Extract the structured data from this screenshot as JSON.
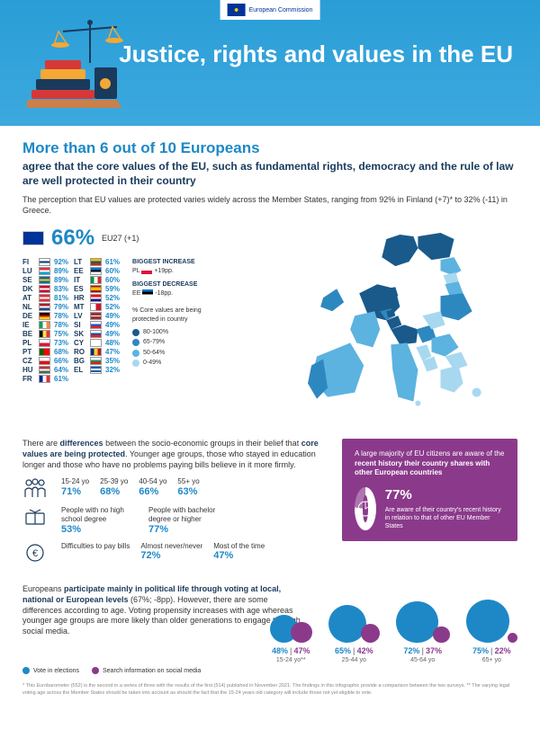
{
  "ec_label": "European\nCommission",
  "title": "Justice, rights and values in the EU",
  "headline": "More than 6 out of 10 Europeans",
  "subhead": "agree that the core values of the EU, such as fundamental rights, democracy and the rule of law are well protected in their country",
  "intro": "The perception that EU values are protected varies widely across the Member States, ranging from 92% in Finland (+7)* to 32% (-11) in Greece.",
  "big_pct": "66%",
  "big_label": "EU27 (+1)",
  "countries_a": [
    {
      "cc": "FI",
      "flag": "linear-gradient(#fff 35%,#003580 35% 65%,#fff 65%)",
      "pct": "92%"
    },
    {
      "cc": "LU",
      "flag": "linear-gradient(#ed2939 33%,#fff 33% 66%,#00a1de 66%)",
      "pct": "89%"
    },
    {
      "cc": "SE",
      "flag": "linear-gradient(#006aa7 35%,#fecc00 35% 65%,#006aa7 65%)",
      "pct": "89%"
    },
    {
      "cc": "DK",
      "flag": "linear-gradient(#c60c30 35%,#fff 35% 65%,#c60c30 65%)",
      "pct": "83%"
    },
    {
      "cc": "AT",
      "flag": "linear-gradient(#ed2939 33%,#fff 33% 66%,#ed2939 66%)",
      "pct": "81%"
    },
    {
      "cc": "NL",
      "flag": "linear-gradient(#ae1c28 33%,#fff 33% 66%,#21468b 66%)",
      "pct": "79%"
    },
    {
      "cc": "DE",
      "flag": "linear-gradient(#000 33%,#dd0000 33% 66%,#ffce00 66%)",
      "pct": "78%"
    },
    {
      "cc": "IE",
      "flag": "linear-gradient(90deg,#169b62 33%,#fff 33% 66%,#ff883e 66%)",
      "pct": "78%"
    },
    {
      "cc": "BE",
      "flag": "linear-gradient(90deg,#000 33%,#fae042 33% 66%,#ed2939 66%)",
      "pct": "75%"
    },
    {
      "cc": "PL",
      "flag": "linear-gradient(#fff 50%,#dc143c 50%)",
      "pct": "73%"
    },
    {
      "cc": "PT",
      "flag": "linear-gradient(90deg,#006600 40%,#ff0000 40%)",
      "pct": "68%"
    },
    {
      "cc": "CZ",
      "flag": "linear-gradient(#fff 50%,#d7141a 50%)",
      "pct": "66%"
    },
    {
      "cc": "HU",
      "flag": "linear-gradient(#cd2a3e 33%,#fff 33% 66%,#436f4d 66%)",
      "pct": "64%"
    },
    {
      "cc": "FR",
      "flag": "linear-gradient(90deg,#002395 33%,#fff 33% 66%,#ed2939 66%)",
      "pct": "61%"
    }
  ],
  "countries_b": [
    {
      "cc": "LT",
      "flag": "linear-gradient(#fdb913 33%,#006a44 33% 66%,#c1272d 66%)",
      "pct": "61%"
    },
    {
      "cc": "EE",
      "flag": "linear-gradient(#0072ce 33%,#000 33% 66%,#fff 66%)",
      "pct": "60%"
    },
    {
      "cc": "IT",
      "flag": "linear-gradient(90deg,#009246 33%,#fff 33% 66%,#ce2b37 66%)",
      "pct": "60%"
    },
    {
      "cc": "ES",
      "flag": "linear-gradient(#aa151b 25%,#f1bf00 25% 75%,#aa151b 75%)",
      "pct": "59%"
    },
    {
      "cc": "HR",
      "flag": "linear-gradient(#ff0000 33%,#fff 33% 66%,#171796 66%)",
      "pct": "52%"
    },
    {
      "cc": "MT",
      "flag": "linear-gradient(90deg,#fff 50%,#cf142b 50%)",
      "pct": "52%"
    },
    {
      "cc": "LV",
      "flag": "linear-gradient(#9e3039 40%,#fff 40% 60%,#9e3039 60%)",
      "pct": "49%"
    },
    {
      "cc": "SI",
      "flag": "linear-gradient(#fff 33%,#005ce5 33% 66%,#ed1c24 66%)",
      "pct": "49%"
    },
    {
      "cc": "SK",
      "flag": "linear-gradient(#fff 33%,#0b4ea2 33% 66%,#ee1c25 66%)",
      "pct": "49%"
    },
    {
      "cc": "CY",
      "flag": "#fff",
      "pct": "48%"
    },
    {
      "cc": "RO",
      "flag": "linear-gradient(90deg,#002b7f 33%,#fcd116 33% 66%,#ce1126 66%)",
      "pct": "47%"
    },
    {
      "cc": "BG",
      "flag": "linear-gradient(#fff 33%,#00966e 33% 66%,#d62612 66%)",
      "pct": "35%"
    },
    {
      "cc": "EL",
      "flag": "repeating-linear-gradient(#0d5eaf 0 2px,#fff 2px 4px)",
      "pct": "32%"
    }
  ],
  "biggest_increase_label": "BIGGEST INCREASE",
  "biggest_increase": "PL 🇵🇱 +19pp.",
  "biggest_decrease_label": "BIGGEST DECREASE",
  "biggest_decrease": "EE 🇪🇪 -18pp.",
  "legend_title": "% Core values are being protected in country",
  "legend": [
    {
      "color": "#1a5a8a",
      "label": "80-100%"
    },
    {
      "color": "#2e88c0",
      "label": "65-79%"
    },
    {
      "color": "#5cb3e0",
      "label": "50-64%"
    },
    {
      "color": "#a8d8f0",
      "label": "0-49%"
    }
  ],
  "section2_text": "There are differences between the socio-economic groups in their belief that core values are being protected. Younger age groups, those who stayed in education longer and those who have no problems paying bills believe in it more firmly.",
  "age_groups": [
    {
      "label": "15-24 yo",
      "val": "71%"
    },
    {
      "label": "25-39 yo",
      "val": "68%"
    },
    {
      "label": "40-54 yo",
      "val": "66%"
    },
    {
      "label": "55+ yo",
      "val": "63%"
    }
  ],
  "edu_groups": [
    {
      "label": "People with no high school degree",
      "val": "53%"
    },
    {
      "label": "People with bachelor degree or higher",
      "val": "77%"
    }
  ],
  "bills_groups": [
    {
      "label": "Difficulties to pay bills",
      "val": ""
    },
    {
      "label": "Almost never/never",
      "val": "72%"
    },
    {
      "label": "Most of the time",
      "val": "47%"
    }
  ],
  "purple_head": "A large majority of EU citizens are aware of the recent history their country shares with other European countries",
  "donut_pct": "77%",
  "donut_text": "Are aware of their country's recent history in relation to that of other EU Member States",
  "voting_text": "Europeans participate mainly in political life through voting at local, national or European levels (67%; -8pp). However, there are some differences according to age. Voting propensity increases with age whereas younger age groups are more likely than older generations to engage through social media.",
  "voting_legend": [
    {
      "color": "#1e88c7",
      "label": "Vote in elections"
    },
    {
      "color": "#8b3a8b",
      "label": "Search information on social media"
    }
  ],
  "voting_data": [
    {
      "v1": 48,
      "v2": 47,
      "age": "15-24 yo**"
    },
    {
      "v1": 65,
      "v2": 42,
      "age": "25-44 yo"
    },
    {
      "v1": 72,
      "v2": 37,
      "age": "45-64 yo"
    },
    {
      "v1": 75,
      "v2": 22,
      "age": "65+ yo"
    }
  ],
  "footnote": "* This Eurobarometer (552) is the second in a series of three with the results of the first (514) published in November 2021. The findings in this infographic provide a comparison between the two surveys.\n** The varying legal voting age across the Member States should be taken into account as should the fact that the 15-24 years old category will include those not yet eligible to vote."
}
